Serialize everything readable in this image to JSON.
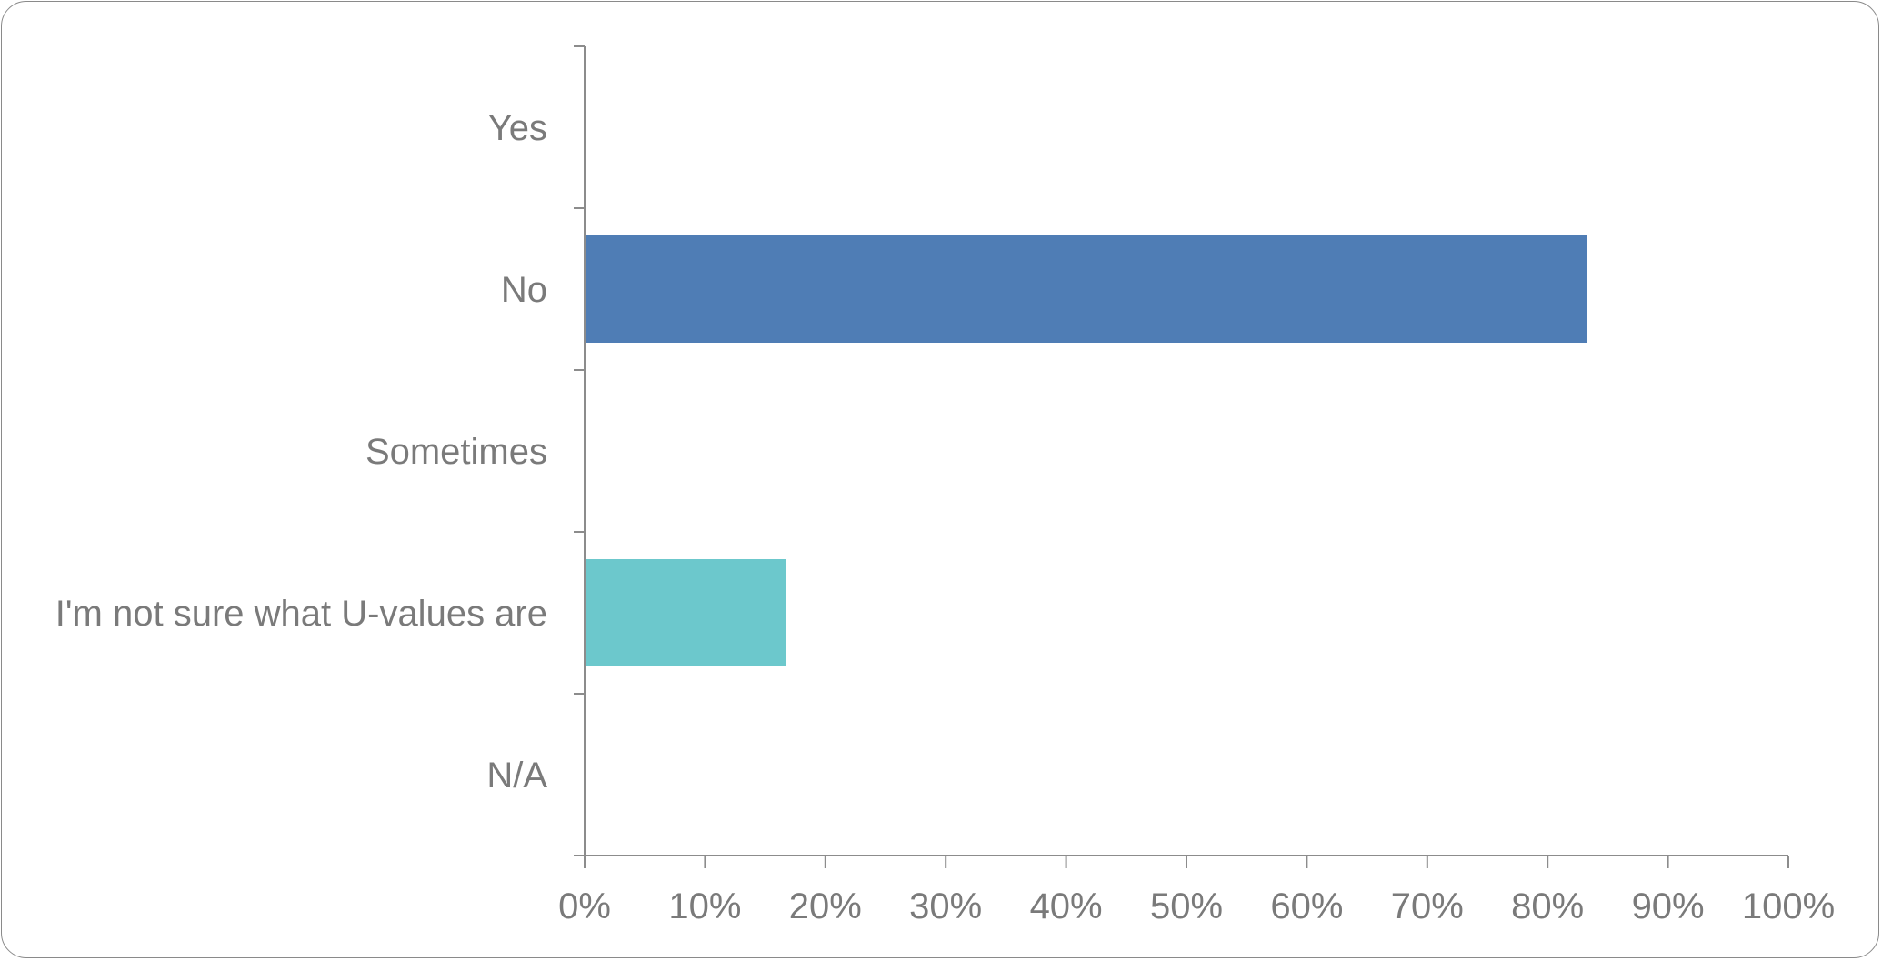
{
  "chart_data": {
    "type": "bar",
    "orientation": "horizontal",
    "categories": [
      "Yes",
      "No",
      "Sometimes",
      "I'm not sure what U-values are",
      "N/A"
    ],
    "values": [
      0,
      83.3,
      0,
      16.7,
      0
    ],
    "bar_colors": [
      "#4F7DB5",
      "#4F7DB5",
      "#4F7DB5",
      "#6CC8CC",
      "#4F7DB5"
    ],
    "x_ticks": [
      "0%",
      "10%",
      "20%",
      "30%",
      "40%",
      "50%",
      "60%",
      "70%",
      "80%",
      "90%",
      "100%"
    ],
    "xlim": [
      0,
      100
    ],
    "grid": false,
    "legend": "none"
  }
}
